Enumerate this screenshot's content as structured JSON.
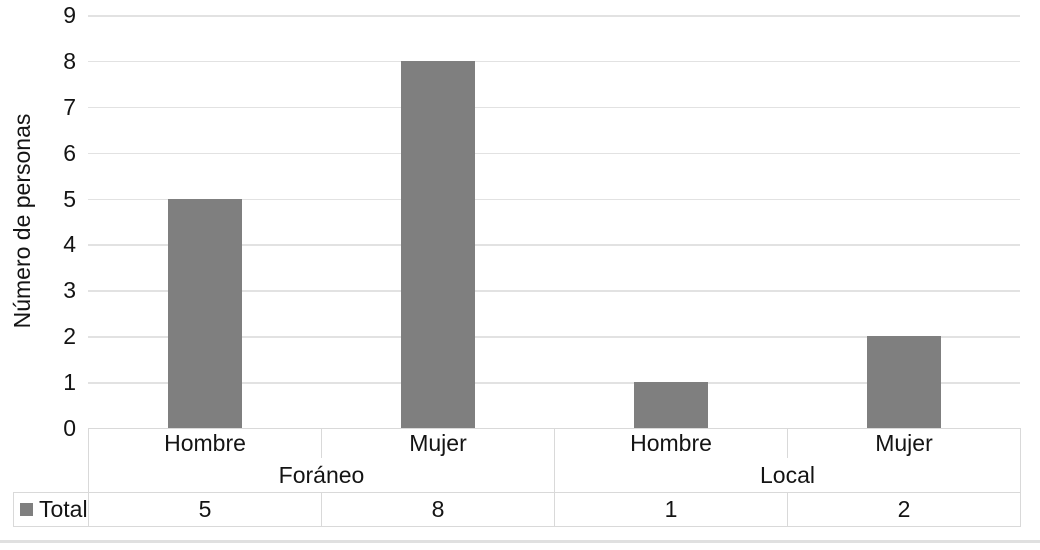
{
  "chart_data": {
    "type": "bar",
    "ylabel": "Número de personas",
    "ylim": [
      0,
      9
    ],
    "yticks": [
      0,
      1,
      2,
      3,
      4,
      5,
      6,
      7,
      8,
      9
    ],
    "grid": true,
    "categories": [
      {
        "group": "Foráneo",
        "label": "Hombre"
      },
      {
        "group": "Foráneo",
        "label": "Mujer"
      },
      {
        "group": "Local",
        "label": "Hombre"
      },
      {
        "group": "Local",
        "label": "Mujer"
      }
    ],
    "groups": [
      {
        "label": "Foráneo",
        "span": 2
      },
      {
        "label": "Local",
        "span": 2
      }
    ],
    "series": [
      {
        "name": "Total",
        "values": [
          5,
          8,
          1,
          2
        ]
      }
    ],
    "legend": {
      "position": "bottom-data-table",
      "entries": [
        {
          "label": "Total",
          "swatch_color": "#7f7f7f"
        }
      ]
    },
    "colors": {
      "bar": "#7f7f7f",
      "gridline": "#e2e2e2",
      "table_border": "#d9d9d9",
      "chart_bottom_edge": "#e0e0e0",
      "text": "#141414",
      "background": "#ffffff"
    }
  }
}
